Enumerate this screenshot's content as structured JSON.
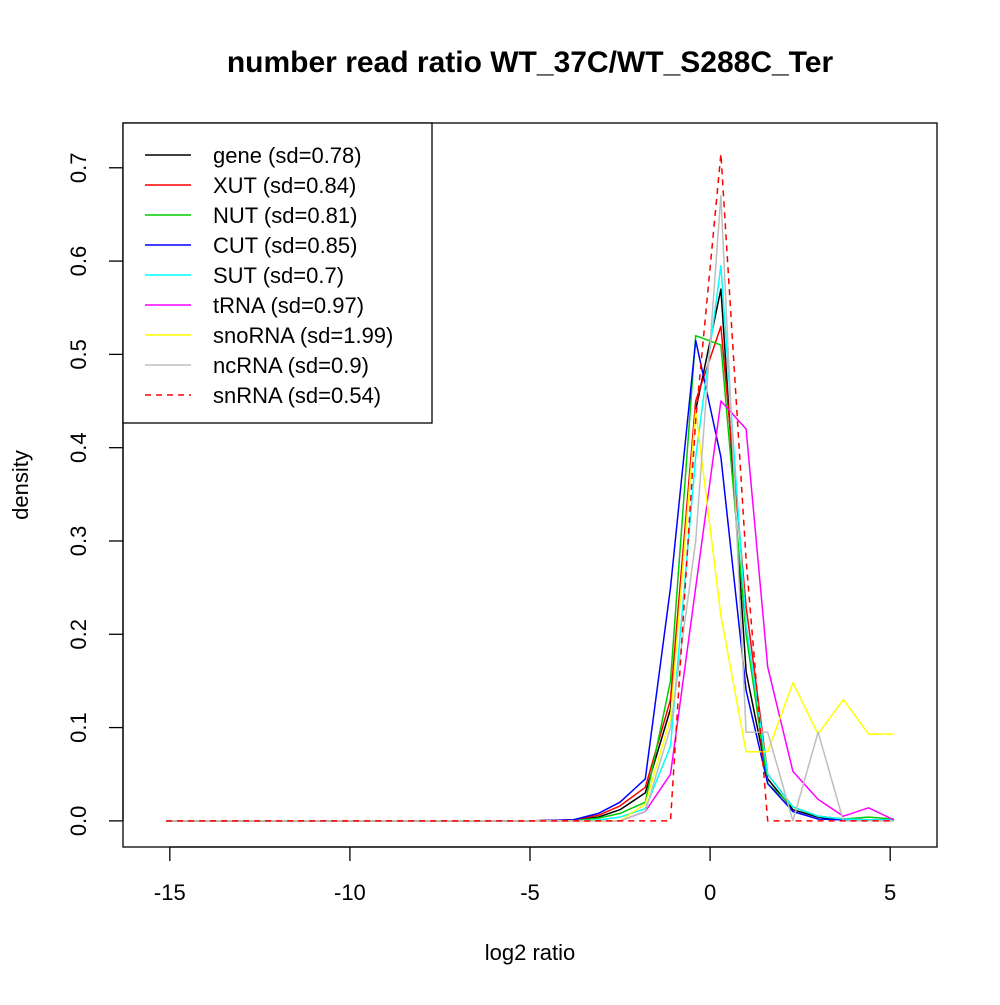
{
  "chart_data": {
    "type": "line",
    "title": "number read ratio WT_37C/WT_S288C_Ter",
    "xlabel": "log2 ratio",
    "ylabel": "density",
    "xlim": [
      -16.3,
      6.3
    ],
    "ylim": [
      -0.028,
      0.748
    ],
    "xticks": [
      {
        "value": -15,
        "label": "-15"
      },
      {
        "value": -10,
        "label": "-10"
      },
      {
        "value": -5,
        "label": "-5"
      },
      {
        "value": 0,
        "label": "0"
      },
      {
        "value": 5,
        "label": "5"
      }
    ],
    "yticks": [
      {
        "value": 0.0,
        "label": "0.0"
      },
      {
        "value": 0.1,
        "label": "0.1"
      },
      {
        "value": 0.2,
        "label": "0.2"
      },
      {
        "value": 0.3,
        "label": "0.3"
      },
      {
        "value": 0.4,
        "label": "0.4"
      },
      {
        "value": 0.5,
        "label": "0.5"
      },
      {
        "value": 0.6,
        "label": "0.6"
      },
      {
        "value": 0.7,
        "label": "0.7"
      }
    ],
    "grid": false,
    "legend_position": "top-left",
    "series": [
      {
        "name": "gene (sd=0.78)",
        "color": "#000000",
        "dash": "solid",
        "x": [
          -15.1,
          -5.0,
          -3.8,
          -3.1,
          -2.5,
          -1.8,
          -1.1,
          -0.4,
          0.3,
          1.0,
          1.6,
          2.3,
          3.0,
          3.7,
          4.4,
          5.1
        ],
        "y": [
          0,
          0,
          0.001,
          0.004,
          0.012,
          0.03,
          0.12,
          0.44,
          0.57,
          0.16,
          0.045,
          0.012,
          0.004,
          0.001,
          0.001,
          0.001
        ]
      },
      {
        "name": "XUT (sd=0.84)",
        "color": "#ff0000",
        "dash": "solid",
        "x": [
          -15.1,
          -5.0,
          -3.8,
          -3.1,
          -2.5,
          -1.8,
          -1.1,
          -0.4,
          0.3,
          1.0,
          1.6,
          2.3,
          3.0,
          3.7,
          4.4,
          5.1
        ],
        "y": [
          0,
          0,
          0.001,
          0.006,
          0.016,
          0.036,
          0.13,
          0.45,
          0.53,
          0.23,
          0.05,
          0.015,
          0.005,
          0.002,
          0.001,
          0.001
        ]
      },
      {
        "name": "NUT (sd=0.81)",
        "color": "#00cd00",
        "dash": "solid",
        "x": [
          -15.1,
          -5.0,
          -3.8,
          -3.1,
          -2.5,
          -1.8,
          -1.1,
          -0.4,
          0.3,
          1.0,
          1.6,
          2.3,
          3.0,
          3.7,
          4.4,
          5.1
        ],
        "y": [
          0,
          0,
          0.0,
          0.003,
          0.008,
          0.02,
          0.15,
          0.52,
          0.51,
          0.2,
          0.04,
          0.015,
          0.005,
          0.002,
          0.004,
          0.002
        ]
      },
      {
        "name": "CUT (sd=0.85)",
        "color": "#0000ff",
        "dash": "solid",
        "x": [
          -15.1,
          -5.0,
          -3.8,
          -3.1,
          -2.5,
          -1.8,
          -1.1,
          -0.4,
          0.3,
          1.0,
          1.6,
          2.3,
          3.0,
          3.7,
          4.4,
          5.1
        ],
        "y": [
          0,
          0,
          0.001,
          0.008,
          0.02,
          0.045,
          0.25,
          0.515,
          0.39,
          0.14,
          0.04,
          0.01,
          0.002,
          0.001,
          0.001,
          0.001
        ]
      },
      {
        "name": "SUT (sd=0.7)",
        "color": "#00ffff",
        "dash": "solid",
        "x": [
          -15.1,
          -5.0,
          -3.8,
          -3.1,
          -2.5,
          -1.8,
          -1.1,
          -0.4,
          0.3,
          1.0,
          1.6,
          2.3,
          3.0,
          3.7,
          4.4,
          5.1
        ],
        "y": [
          0,
          0,
          0.0,
          0.001,
          0.004,
          0.013,
          0.08,
          0.39,
          0.595,
          0.21,
          0.05,
          0.015,
          0.005,
          0.002,
          0.001,
          0.001
        ]
      },
      {
        "name": "tRNA (sd=0.97)",
        "color": "#ff00ff",
        "dash": "solid",
        "x": [
          -15.1,
          -5.0,
          -3.8,
          -3.1,
          -2.5,
          -1.8,
          -1.1,
          -0.4,
          0.3,
          1.0,
          1.6,
          2.3,
          3.0,
          3.7,
          4.4,
          5.1
        ],
        "y": [
          0,
          0,
          0,
          0,
          0.0,
          0.01,
          0.05,
          0.25,
          0.45,
          0.42,
          0.165,
          0.053,
          0.023,
          0.005,
          0.014,
          0.001
        ]
      },
      {
        "name": "snoRNA (sd=1.99)",
        "color": "#ffff00",
        "dash": "solid",
        "x": [
          -15.1,
          -5.0,
          -3.8,
          -3.1,
          -2.5,
          -1.8,
          -1.1,
          -0.4,
          0.3,
          1.0,
          1.6,
          2.3,
          3.0,
          3.7,
          4.4,
          5.1
        ],
        "y": [
          0,
          0,
          0,
          0,
          0,
          0.018,
          0.11,
          0.44,
          0.22,
          0.074,
          0.074,
          0.148,
          0.093,
          0.13,
          0.093,
          0.093
        ]
      },
      {
        "name": "ncRNA (sd=0.9)",
        "color": "#bebebe",
        "dash": "solid",
        "x": [
          -15.1,
          -5.0,
          -3.8,
          -3.1,
          -2.5,
          -1.8,
          -1.1,
          -0.4,
          0.3,
          1.0,
          1.6,
          2.3,
          3.0,
          3.7,
          4.4,
          5.1
        ],
        "y": [
          0,
          0,
          0,
          0,
          0,
          0.01,
          0.1,
          0.3,
          0.67,
          0.095,
          0.095,
          0.0,
          0.095,
          0.0,
          0.0,
          0.0
        ]
      },
      {
        "name": "snRNA (sd=0.54)",
        "color": "#ff0000",
        "dash": "dashed",
        "x": [
          -15.1,
          -5.0,
          -3.8,
          -3.1,
          -2.5,
          -1.8,
          -1.1,
          -0.4,
          0.3,
          1.0,
          1.6,
          2.3,
          3.0,
          3.7,
          4.4,
          5.1
        ],
        "y": [
          0,
          0,
          0,
          0,
          0,
          0,
          0,
          0.43,
          0.715,
          0.28,
          0.0,
          0.0,
          0.0,
          0.0,
          0.0,
          0.0
        ]
      }
    ]
  }
}
